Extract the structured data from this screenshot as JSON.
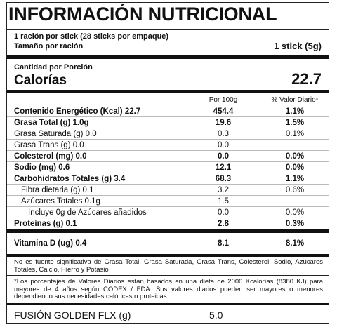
{
  "header": {
    "title": "INFORMACIÓN NUTRICIONAL",
    "serving_line": "1 ración por stick (28 sticks por empaque)",
    "serving_size_label": "Tamaño por ración",
    "serving_size_value": "1 stick (5g)"
  },
  "calories": {
    "caption": "Cantidad por Porción",
    "label": "Calorías",
    "value": "22.7"
  },
  "table": {
    "columns": [
      "Por 100g",
      "% Valor Diario*"
    ],
    "rows": [
      [
        "Contenido Energético (Kcal) 22.7",
        "454.4",
        "1.1%"
      ],
      [
        "Grasa Total (g) 1.0g",
        "19.6",
        "1.5%"
      ],
      [
        "Grasa Saturada (g) 0.0",
        "0.3",
        "0.1%"
      ],
      [
        "Grasa Trans (g) 0.0",
        "0.0"
      ],
      [
        "Colesterol (mg) 0.0",
        "0.0",
        "0.0%"
      ],
      [
        "Sodio (mg) 0.6",
        "12.1",
        "0.0%"
      ],
      [
        "Carbohidratos Totales (g) 3.4",
        "68.3",
        "1.1%"
      ],
      [
        "Fibra dietaria (g) 0.1",
        "3.2",
        "0.6%"
      ],
      [
        "Azúcares Totales 0.1g",
        "1.5"
      ],
      [
        "Incluye 0g de Azúcares añadidos",
        "0.0",
        "0.0%"
      ],
      [
        "Proteínas (g) 0.1",
        "2.8",
        "0.3%"
      ]
    ],
    "vitamin_row": [
      "Vitamina D (ug) 0.4",
      "8.1",
      "8.1%"
    ]
  },
  "footnotes": [
    "No es fuente significativa de Grasa Total, Grasa Saturada, Grasa Trans, Colesterol, Sodio, Azúcares Totales, Calcio, Hierro y Potasio",
    "*Los porcentajes de Valores Diarios están basados en una dieta de 2000 Kcalorías (8380 KJ) para mayores de 4 años según CODEX / FDA. Sus valores diarios pueden ser mayores o menores dependiendo sus necesidades calóricas o proteicas."
  ],
  "footer": {
    "label": "FUSIÓN GOLDEN FLX (g)",
    "value": "5.0"
  }
}
